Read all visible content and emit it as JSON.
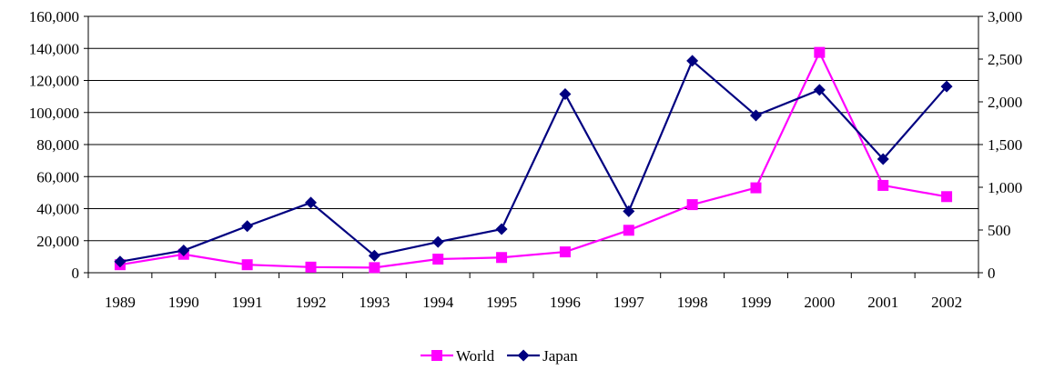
{
  "chart_data": {
    "type": "line",
    "categories": [
      "1989",
      "1990",
      "1991",
      "1992",
      "1993",
      "1994",
      "1995",
      "1996",
      "1997",
      "1998",
      "1999",
      "2000",
      "2001",
      "2002"
    ],
    "grid": true,
    "legend_position": "bottom",
    "left_axis": {
      "ylim": [
        0,
        160000
      ],
      "ticks": [
        0,
        20000,
        40000,
        60000,
        80000,
        100000,
        120000,
        140000,
        160000
      ],
      "tick_labels": [
        "0",
        "20,000",
        "40,000",
        "60,000",
        "80,000",
        "100,000",
        "120,000",
        "140,000",
        "160,000"
      ]
    },
    "right_axis": {
      "ylim": [
        0,
        3000
      ],
      "ticks": [
        0,
        500,
        1000,
        1500,
        2000,
        2500,
        3000
      ],
      "tick_labels": [
        "0",
        "500",
        "1,000",
        "1,500",
        "2,000",
        "2,500",
        "3,000"
      ]
    },
    "series": [
      {
        "name": "World",
        "axis": "left",
        "color": "#FF00FF",
        "marker": "square",
        "values": [
          5000,
          11500,
          5000,
          3500,
          3200,
          8500,
          9500,
          13000,
          26500,
          42500,
          53000,
          137500,
          54500,
          47500
        ]
      },
      {
        "name": "Japan",
        "axis": "right",
        "color": "#000080",
        "marker": "diamond",
        "values": [
          130,
          260,
          545,
          820,
          200,
          360,
          510,
          2090,
          720,
          2480,
          1840,
          2140,
          1330,
          2180
        ]
      }
    ]
  }
}
